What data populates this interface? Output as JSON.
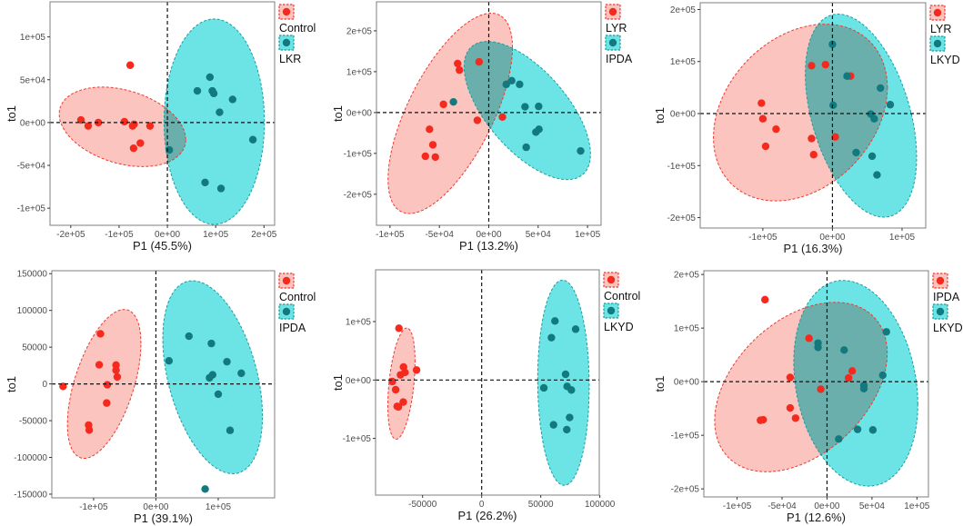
{
  "colors": {
    "red_fill": "#FBC4BF",
    "red_stroke": "#F2382E",
    "red_point": "#F42A1E",
    "teal_fill": "#6CE4E6",
    "teal_stroke": "#1A9DA1",
    "teal_point": "#127A7E"
  },
  "chart_data": [
    {
      "type": "scatter",
      "title": "",
      "xlabel": "P1 (45.5%)",
      "ylabel": "to1",
      "xlim": [
        -243000,
        222000
      ],
      "ylim": [
        -120000,
        141000
      ],
      "grid": false,
      "legend": "right",
      "xticks": [
        {
          "v": -200000,
          "label": "-2e+05"
        },
        {
          "v": -100000,
          "label": "-1e+05"
        },
        {
          "v": 0,
          "label": "0e+00"
        },
        {
          "v": 100000,
          "label": "1e+05"
        },
        {
          "v": 200000,
          "label": "2e+05"
        }
      ],
      "yticks": [
        {
          "v": -100000,
          "label": "-1e+05"
        },
        {
          "v": -50000,
          "label": "-5e+04"
        },
        {
          "v": 0,
          "label": "0e+00"
        },
        {
          "v": 50000,
          "label": "5e+04"
        },
        {
          "v": 100000,
          "label": "1e+05"
        }
      ],
      "series": [
        {
          "name": "Control",
          "color": "red",
          "x": [
            -179000,
            -164000,
            -143000,
            -89000,
            -72000,
            -69000,
            -36000,
            -56000,
            -70000,
            -77000
          ],
          "y": [
            3000,
            -4000,
            0,
            1000,
            -4000,
            -2000,
            -4000,
            -24000,
            -30000,
            67000
          ],
          "ellipse": {
            "center": [
              -93000,
              -5000
            ],
            "a": [
              131000,
              -14900
            ],
            "v": 44000
          }
        },
        {
          "name": "LKR",
          "color": "teal",
          "x": [
            88000,
            62000,
            93000,
            96000,
            135000,
            108000,
            177000,
            4000,
            78000,
            111000
          ],
          "y": [
            53000,
            37000,
            37000,
            34000,
            27000,
            12000,
            -20000,
            -32000,
            -70000,
            -77000
          ],
          "ellipse": {
            "center": [
              97000,
              1000
            ],
            "a": [
              104000,
              0
            ],
            "v": 120000
          }
        }
      ]
    },
    {
      "type": "scatter",
      "title": "",
      "xlabel": "P1 (13.2%)",
      "ylabel": "to1",
      "xlim": [
        -113700,
        113700
      ],
      "ylim": [
        -276000,
        271000
      ],
      "grid": false,
      "legend": "right",
      "xticks": [
        {
          "v": -100000,
          "label": "-1e+05"
        },
        {
          "v": -50000,
          "label": "-5e+04"
        },
        {
          "v": 0,
          "label": "0e+00"
        },
        {
          "v": 50000,
          "label": "5e+04"
        },
        {
          "v": 100000,
          "label": "1e+05"
        }
      ],
      "yticks": [
        {
          "v": -200000,
          "label": "-2e+05"
        },
        {
          "v": -100000,
          "label": "-1e+05"
        },
        {
          "v": 0,
          "label": "0e+00"
        },
        {
          "v": 100000,
          "label": "1e+05"
        },
        {
          "v": 200000,
          "label": "2e+05"
        }
      ],
      "series": [
        {
          "name": "LYR",
          "color": "red",
          "x": [
            -31500,
            -29700,
            -45900,
            -60000,
            -56600,
            -64200,
            -54100,
            -11600,
            -9800,
            13800
          ],
          "y": [
            120000,
            104000,
            20000,
            -41000,
            -79000,
            -107000,
            -109000,
            -19000,
            124000,
            -11000
          ],
          "ellipse": {
            "center": [
              -39000,
              -2000
            ],
            "a": [
              63000,
              161000
            ],
            "v": 185000
          }
        },
        {
          "name": "IPDA",
          "color": "teal",
          "x": [
            -35800,
            17700,
            23200,
            31200,
            36700,
            50500,
            47700,
            50800,
            37900,
            93000
          ],
          "y": [
            26000,
            69000,
            78000,
            69000,
            14000,
            15000,
            -48000,
            -41000,
            -85000,
            -94000
          ],
          "ellipse": {
            "center": [
              39000,
              5000
            ],
            "a": [
              64000,
              -107000
            ],
            "v": 131000
          }
        }
      ]
    },
    {
      "type": "scatter",
      "title": "",
      "xlabel": "P1 (16.3%)",
      "ylabel": "to1",
      "xlim": [
        -190000,
        134000
      ],
      "ylim": [
        -220000,
        213000
      ],
      "grid": false,
      "legend": "right",
      "xticks": [
        {
          "v": -100000,
          "label": "-1e+05"
        },
        {
          "v": 0,
          "label": "0e+00"
        },
        {
          "v": 100000,
          "label": "1e+05"
        }
      ],
      "yticks": [
        {
          "v": -200000,
          "label": "-2e+05"
        },
        {
          "v": -100000,
          "label": "-1e+05"
        },
        {
          "v": 0,
          "label": "0e+00"
        },
        {
          "v": 100000,
          "label": "1e+05"
        },
        {
          "v": 200000,
          "label": "2e+05"
        }
      ],
      "series": [
        {
          "name": "LYR",
          "color": "red",
          "x": [
            -102000,
            -100000,
            -81000,
            -96000,
            -30000,
            -10000,
            -30000,
            -27000,
            26000,
            4000
          ],
          "y": [
            20000,
            -10000,
            -30000,
            -63000,
            92000,
            94000,
            -48000,
            -79000,
            72000,
            -45000
          ],
          "ellipse": {
            "center": [
              -46000,
              2000
            ],
            "a": [
              125000,
              48000
            ],
            "v": 163000
          }
        },
        {
          "name": "LKYD",
          "color": "teal",
          "x": [
            0,
            21000,
            1000,
            69000,
            83000,
            55000,
            60000,
            34000,
            57000,
            64000
          ],
          "y": [
            133000,
            72000,
            16000,
            49000,
            17000,
            -1000,
            -10000,
            -75000,
            -82000,
            -118000
          ],
          "ellipse": {
            "center": [
              41000,
              -4000
            ],
            "a": [
              80000,
              -80000
            ],
            "v": 178000
          }
        }
      ]
    },
    {
      "type": "scatter",
      "title": "",
      "xlabel": "P1 (39.1%)",
      "ylabel": "to1",
      "xlim": [
        -167000,
        190500
      ],
      "ylim": [
        -155000,
        154000
      ],
      "grid": false,
      "legend": "right",
      "xticks": [
        {
          "v": -100000,
          "label": "-1e+05"
        },
        {
          "v": 0,
          "label": "0e+00"
        },
        {
          "v": 100000,
          "label": "1e+05"
        }
      ],
      "yticks": [
        {
          "v": -150000,
          "label": "-150000"
        },
        {
          "v": -100000,
          "label": "-100000"
        },
        {
          "v": -50000,
          "label": "-50000"
        },
        {
          "v": 0,
          "label": "0"
        },
        {
          "v": 50000,
          "label": "50000"
        },
        {
          "v": 100000,
          "label": "100000"
        },
        {
          "v": 150000,
          "label": "150000"
        }
      ],
      "series": [
        {
          "name": "Control",
          "color": "red",
          "x": [
            -149000,
            -89000,
            -91000,
            -64000,
            -64000,
            -62000,
            -78000,
            -79000,
            -108000,
            -107000
          ],
          "y": [
            -3300,
            68200,
            26000,
            25600,
            18600,
            9500,
            -1200,
            -26000,
            -56000,
            -62800
          ],
          "ellipse": {
            "center": [
              -83000,
              0
            ],
            "a": [
              59000,
              55000
            ],
            "v": 85100
          }
        },
        {
          "name": "IPDA",
          "color": "teal",
          "x": [
            21000,
            53000,
            89000,
            114000,
            91000,
            86000,
            137000,
            100000,
            119000,
            79000
          ],
          "y": [
            31400,
            64900,
            55000,
            30200,
            12400,
            8300,
            14500,
            -14000,
            -63200,
            -143000
          ],
          "ellipse": {
            "center": [
              91000,
              9100
            ],
            "a": [
              80000,
              -52900
            ],
            "v": 120200
          }
        }
      ]
    },
    {
      "type": "scatter",
      "title": "",
      "xlabel": "P1 (26.2%)",
      "ylabel": "to1",
      "xlim": [
        -89800,
        99500
      ],
      "ylim": [
        -197000,
        188600
      ],
      "grid": false,
      "legend": "right",
      "xticks": [
        {
          "v": -50000,
          "label": "-50000"
        },
        {
          "v": 0,
          "label": "0"
        },
        {
          "v": 50000,
          "label": "50000"
        },
        {
          "v": 100000,
          "label": "100000"
        }
      ],
      "yticks": [
        {
          "v": -100000,
          "label": "-1e+05"
        },
        {
          "v": 0,
          "label": "0e+00"
        },
        {
          "v": 100000,
          "label": "1e+05"
        }
      ],
      "series": [
        {
          "name": "Control",
          "color": "red",
          "x": [
            -70000,
            -66150,
            -68700,
            -64900,
            -55100,
            -75600,
            -72800,
            -66400,
            -71500,
            -70500
          ],
          "y": [
            88600,
            22300,
            8800,
            13000,
            17100,
            -2600,
            -16600,
            -37800,
            -45100,
            -46100
          ],
          "ellipse": {
            "center": [
              -67900,
              -6200
            ],
            "a": [
              11500,
              37300
            ],
            "v": 87600
          }
        },
        {
          "name": "LKYD",
          "color": "teal",
          "x": [
            62000,
            59000,
            79500,
            71000,
            52600,
            72300,
            75900,
            74400,
            60800,
            72000
          ],
          "y": [
            101000,
            72500,
            87000,
            9800,
            -13500,
            -10900,
            -17100,
            -64200,
            -76700,
            -85000
          ],
          "ellipse": {
            "center": [
              69200,
              -4700
            ],
            "a": [
              21800,
              -5700
            ],
            "v": 175600
          }
        }
      ]
    },
    {
      "type": "scatter",
      "title": "",
      "xlabel": "P1 (12.6%)",
      "ylabel": "to1",
      "xlim": [
        -137000,
        112800
      ],
      "ylim": [
        -215000,
        207000
      ],
      "grid": false,
      "legend": "right",
      "xticks": [
        {
          "v": -100000,
          "label": "-1e+05"
        },
        {
          "v": -50000,
          "label": "-5e+04"
        },
        {
          "v": 0,
          "label": "0e+00"
        },
        {
          "v": 50000,
          "label": "5e+04"
        },
        {
          "v": 100000,
          "label": "1e+05"
        }
      ],
      "yticks": [
        {
          "v": -200000,
          "label": "-2e+05"
        },
        {
          "v": -100000,
          "label": "-1e+05"
        },
        {
          "v": 0,
          "label": "0e+00"
        },
        {
          "v": 100000,
          "label": "1e+05"
        },
        {
          "v": 200000,
          "label": "2e+05"
        }
      ],
      "series": [
        {
          "name": "IPDA",
          "color": "red",
          "x": [
            -69000,
            -20000,
            -41000,
            -7000,
            28000,
            24000,
            -41000,
            -35000,
            -74000,
            -71000
          ],
          "y": [
            153000,
            81000,
            8000,
            -14000,
            20000,
            7000,
            -49000,
            -68000,
            -72000,
            -71000
          ],
          "ellipse": {
            "center": [
              -29000,
              -10000
            ],
            "a": [
              96000,
              63000
            ],
            "v": 145000
          }
        },
        {
          "name": "LKYD",
          "color": "teal",
          "x": [
            -10000,
            -10000,
            19000,
            66000,
            62000,
            41000,
            41000,
            34000,
            51000,
            13000
          ],
          "y": [
            72000,
            64000,
            59000,
            93000,
            12000,
            -7000,
            -13000,
            -89000,
            -90000,
            -107000
          ],
          "ellipse": {
            "center": [
              32000,
              -3000
            ],
            "a": [
              69000,
              -39000
            ],
            "v": 188000
          }
        }
      ]
    }
  ]
}
